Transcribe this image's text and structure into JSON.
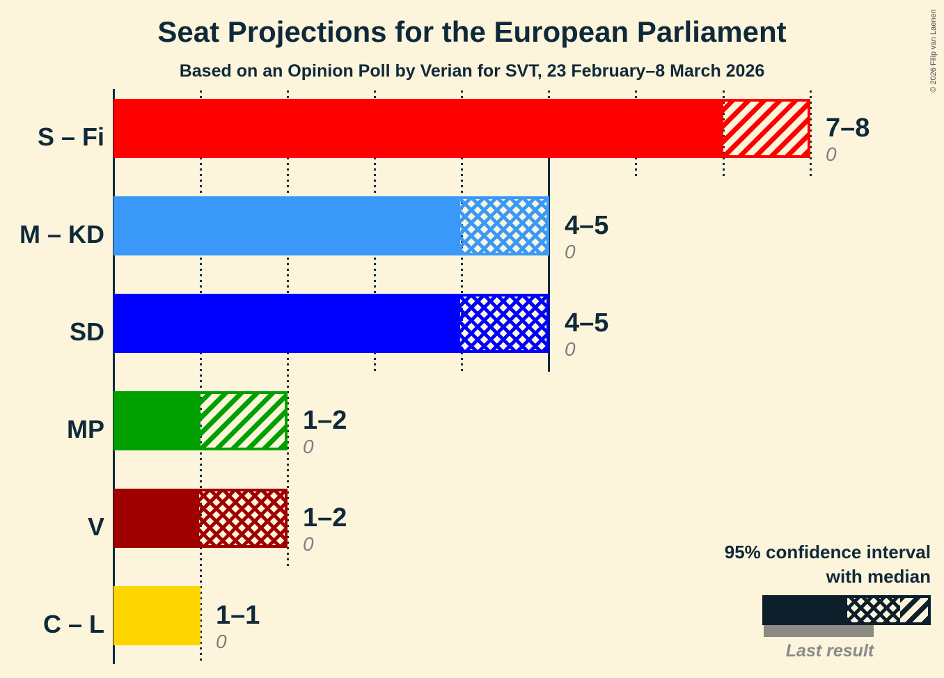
{
  "header": {
    "title": "Seat Projections for the European Parliament",
    "subtitle": "Based on an Opinion Poll by Verian for SVT, 23 February–8 March 2026",
    "copyright": "© 2026 Filip van Laenen"
  },
  "legend": {
    "ci_line1": "95% confidence interval",
    "ci_line2": "with median",
    "last_result_label": "Last result"
  },
  "colors": {
    "background": "#fcf5dc",
    "text": "#10293a",
    "muted_text": "#7f7f7f",
    "legend_bar": "#0e1f2c",
    "last_result_bar": "#8b8b83"
  },
  "chart_data": {
    "type": "bar",
    "orientation": "horizontal",
    "title": "Seat Projections for the European Parliament",
    "subtitle": "Based on an Opinion Poll by Verian for SVT, 23 February–8 March 2026",
    "x_axis": {
      "min": 0,
      "max": 8,
      "gridline_step": 1,
      "grid": "dotted"
    },
    "rows": [
      {
        "label": "S – Fi",
        "color": "#ff0000",
        "ci_low": 7,
        "median": 7,
        "ci_high": 8,
        "value_label": "7–8",
        "last_result": "0"
      },
      {
        "label": "M – KD",
        "color": "#3a99f8",
        "ci_low": 4,
        "median": 5,
        "ci_high": 5,
        "value_label": "4–5",
        "last_result": "0"
      },
      {
        "label": "SD",
        "color": "#0000ff",
        "ci_low": 4,
        "median": 5,
        "ci_high": 5,
        "value_label": "4–5",
        "last_result": "0"
      },
      {
        "label": "MP",
        "color": "#00a000",
        "ci_low": 1,
        "median": 1,
        "ci_high": 2,
        "value_label": "1–2",
        "last_result": "0"
      },
      {
        "label": "V",
        "color": "#a00000",
        "ci_low": 1,
        "median": 2,
        "ci_high": 2,
        "value_label": "1–2",
        "last_result": "0"
      },
      {
        "label": "C – L",
        "color": "#ffd500",
        "ci_low": 1,
        "median": 1,
        "ci_high": 1,
        "value_label": "1–1",
        "last_result": "0"
      }
    ],
    "reference_line": {
      "seats": 5,
      "row_span": [
        1,
        2
      ]
    },
    "legend": {
      "ci_label": "95% confidence interval with median",
      "last_result_label": "Last result"
    }
  }
}
